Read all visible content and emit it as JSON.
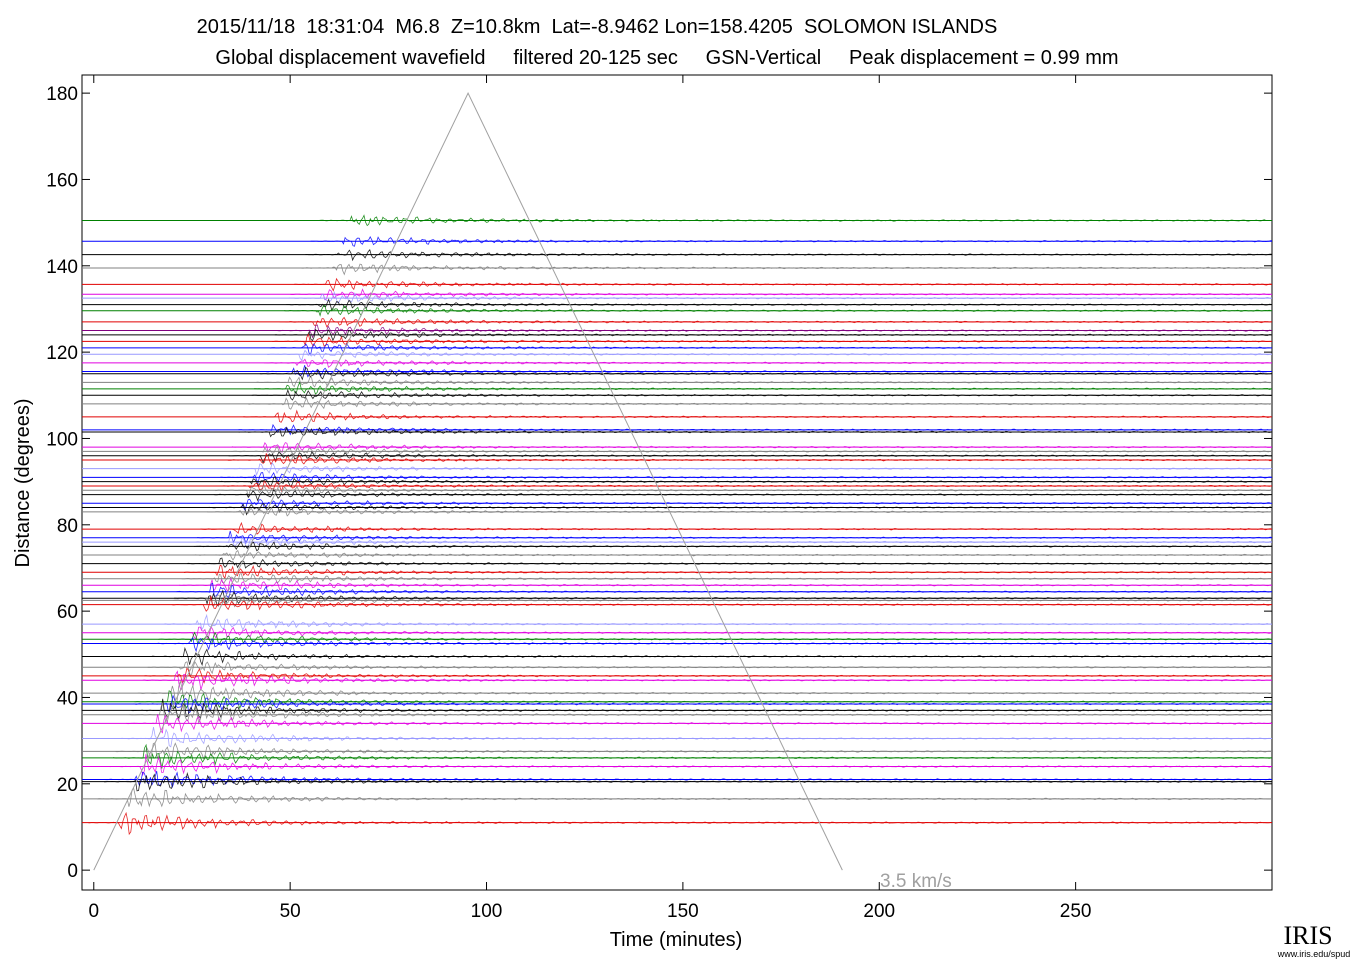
{
  "chart_data": {
    "type": "record-section",
    "title": "2015/11/18  18:31:04  M6.8  Z=10.8km  Lat=-8.9462 Lon=158.4205  SOLOMON ISLANDS",
    "subtitle": "Global displacement wavefield     filtered 20-125 sec     GSN-Vertical     Peak displacement = 0.99 mm",
    "x_label": "Time (minutes)",
    "y_label": "Distance (degrees)",
    "xlim": [
      -3,
      300
    ],
    "ylim": [
      -4.6,
      184.2
    ],
    "xticks": [
      0,
      50,
      100,
      150,
      200,
      250
    ],
    "yticks": [
      0,
      20,
      40,
      60,
      80,
      100,
      120,
      140,
      160,
      180
    ],
    "distances": [
      150.5,
      145.7,
      142.6,
      139.5,
      135.7,
      133.4,
      132.5,
      131,
      129.6,
      127,
      125,
      124,
      122.5,
      121,
      119.5,
      117.5,
      115.5,
      115,
      113,
      111.5,
      110,
      108,
      105,
      102,
      101.5,
      98,
      97,
      96,
      95,
      93,
      91,
      90,
      89,
      88,
      87,
      85,
      84,
      83,
      79,
      77,
      76,
      75,
      73,
      71,
      69,
      67.5,
      66,
      64.5,
      63,
      62.5,
      61.5,
      57,
      55,
      53.5,
      52.5,
      49.5,
      47,
      45,
      44,
      41,
      39,
      38.5,
      37,
      36,
      34,
      30.5,
      27.5,
      26,
      24,
      21,
      20.5,
      16.5,
      11
    ],
    "colors": [
      "#008000",
      "#0000ff",
      "#000000",
      "#808080",
      "#e00000",
      "#e000e0",
      "#9999ff",
      "#000000",
      "#008000",
      "#e00000",
      "#800080",
      "#000000",
      "#e00000",
      "#0000ff",
      "#9999ff",
      "#e000e0",
      "#0000ff",
      "#000000",
      "#808080",
      "#008000",
      "#000000",
      "#808080",
      "#e00000",
      "#0000ff",
      "#000000",
      "#e000e0",
      "#808080",
      "#000000",
      "#e00000",
      "#9999ff",
      "#0000ff",
      "#000000",
      "#e00000",
      "#808080",
      "#000000",
      "#0000ff",
      "#000000",
      "#808080",
      "#e00000",
      "#0000ff",
      "#9999ff",
      "#000000",
      "#808080",
      "#000000",
      "#e00000",
      "#808080",
      "#e000e0",
      "#0000ff",
      "#000000",
      "#808080",
      "#e00000",
      "#9999ff",
      "#e000e0",
      "#008000",
      "#0000ff",
      "#000000",
      "#808080",
      "#e00000",
      "#e000e0",
      "#808080",
      "#008000",
      "#0000ff",
      "#000000",
      "#808080",
      "#e000e0",
      "#9999ff",
      "#808080",
      "#008000",
      "#e000e0",
      "#0000ff",
      "#000000",
      "#808080",
      "#e00000"
    ],
    "reference_line": {
      "label": "3.5 km/s",
      "x": [
        0,
        95.3,
        190.6
      ],
      "y": [
        0,
        180,
        0
      ],
      "color": "#a0a0a0"
    },
    "logo": "IRIS",
    "logo_url": "www.iris.edu/spud"
  }
}
